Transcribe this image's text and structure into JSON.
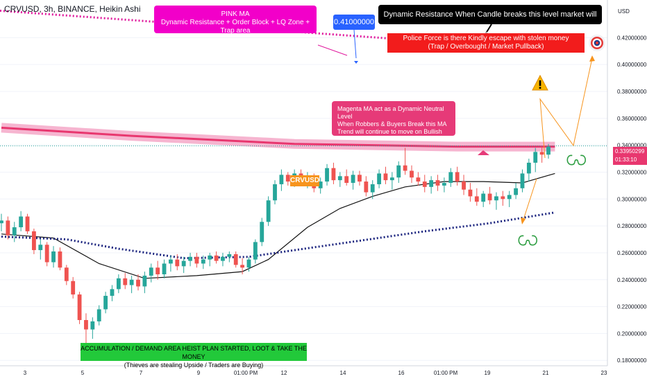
{
  "header": {
    "title": "CRVUSD, 3h, BINANCE, Heikin Ashi",
    "currency": "USD"
  },
  "chart_data": {
    "type": "candlestick",
    "x_tick_labels": [
      "3",
      "5",
      "7",
      "9",
      "01:00 PM",
      "12",
      "14",
      "16",
      "01:00 PM",
      "19",
      "21",
      "23"
    ],
    "y_tick_labels": [
      "0.42000000",
      "0.40000000",
      "0.38000000",
      "0.36000000",
      "0.34000000",
      "0.32000000",
      "0.30000000",
      "0.28000000",
      "0.26000000",
      "0.24000000",
      "0.22000000",
      "0.20000000",
      "0.18000000"
    ],
    "ylim": [
      0.176,
      0.448
    ],
    "y_ticks": [
      0.42,
      0.4,
      0.38,
      0.36,
      0.34,
      0.32,
      0.3,
      0.28,
      0.26,
      0.24,
      0.22,
      0.2,
      0.18
    ],
    "last_price": "0.33950299",
    "countdown": "01:33:10",
    "ohlc": [
      [
        0.282,
        0.289,
        0.276,
        0.284
      ],
      [
        0.284,
        0.287,
        0.27,
        0.273
      ],
      [
        0.273,
        0.283,
        0.268,
        0.279
      ],
      [
        0.279,
        0.291,
        0.276,
        0.287
      ],
      [
        0.287,
        0.289,
        0.274,
        0.276
      ],
      [
        0.276,
        0.278,
        0.259,
        0.262
      ],
      [
        0.262,
        0.27,
        0.255,
        0.266
      ],
      [
        0.266,
        0.268,
        0.25,
        0.253
      ],
      [
        0.253,
        0.265,
        0.249,
        0.261
      ],
      [
        0.261,
        0.264,
        0.247,
        0.249
      ],
      [
        0.249,
        0.251,
        0.236,
        0.239
      ],
      [
        0.239,
        0.242,
        0.226,
        0.229
      ],
      [
        0.229,
        0.231,
        0.207,
        0.21
      ],
      [
        0.21,
        0.215,
        0.19,
        0.203
      ],
      [
        0.203,
        0.212,
        0.196,
        0.209
      ],
      [
        0.209,
        0.221,
        0.206,
        0.218
      ],
      [
        0.218,
        0.231,
        0.215,
        0.228
      ],
      [
        0.228,
        0.236,
        0.224,
        0.233
      ],
      [
        0.233,
        0.244,
        0.23,
        0.241
      ],
      [
        0.241,
        0.245,
        0.233,
        0.236
      ],
      [
        0.236,
        0.243,
        0.23,
        0.24
      ],
      [
        0.24,
        0.244,
        0.232,
        0.235
      ],
      [
        0.235,
        0.246,
        0.23,
        0.243
      ],
      [
        0.243,
        0.252,
        0.238,
        0.249
      ],
      [
        0.249,
        0.254,
        0.24,
        0.244
      ],
      [
        0.244,
        0.255,
        0.241,
        0.252
      ],
      [
        0.252,
        0.258,
        0.246,
        0.255
      ],
      [
        0.255,
        0.259,
        0.247,
        0.25
      ],
      [
        0.25,
        0.257,
        0.245,
        0.254
      ],
      [
        0.254,
        0.26,
        0.25,
        0.257
      ],
      [
        0.257,
        0.26,
        0.249,
        0.252
      ],
      [
        0.252,
        0.258,
        0.248,
        0.255
      ],
      [
        0.255,
        0.26,
        0.25,
        0.258
      ],
      [
        0.258,
        0.261,
        0.252,
        0.254
      ],
      [
        0.254,
        0.26,
        0.25,
        0.257
      ],
      [
        0.257,
        0.261,
        0.253,
        0.259
      ],
      [
        0.259,
        0.261,
        0.249,
        0.251
      ],
      [
        0.251,
        0.256,
        0.244,
        0.249
      ],
      [
        0.249,
        0.257,
        0.246,
        0.255
      ],
      [
        0.255,
        0.27,
        0.252,
        0.268
      ],
      [
        0.268,
        0.286,
        0.265,
        0.283
      ],
      [
        0.283,
        0.302,
        0.28,
        0.299
      ],
      [
        0.299,
        0.314,
        0.296,
        0.311
      ],
      [
        0.311,
        0.322,
        0.306,
        0.318
      ],
      [
        0.318,
        0.32,
        0.31,
        0.313
      ],
      [
        0.313,
        0.322,
        0.309,
        0.319
      ],
      [
        0.319,
        0.322,
        0.311,
        0.314
      ],
      [
        0.314,
        0.32,
        0.308,
        0.316
      ],
      [
        0.316,
        0.319,
        0.305,
        0.308
      ],
      [
        0.308,
        0.316,
        0.304,
        0.313
      ],
      [
        0.313,
        0.326,
        0.31,
        0.323
      ],
      [
        0.323,
        0.327,
        0.311,
        0.314
      ],
      [
        0.314,
        0.32,
        0.309,
        0.317
      ],
      [
        0.317,
        0.322,
        0.31,
        0.312
      ],
      [
        0.312,
        0.321,
        0.307,
        0.318
      ],
      [
        0.318,
        0.321,
        0.31,
        0.313
      ],
      [
        0.313,
        0.317,
        0.302,
        0.305
      ],
      [
        0.305,
        0.314,
        0.3,
        0.311
      ],
      [
        0.311,
        0.322,
        0.308,
        0.319
      ],
      [
        0.319,
        0.324,
        0.311,
        0.314
      ],
      [
        0.314,
        0.32,
        0.307,
        0.316
      ],
      [
        0.316,
        0.328,
        0.312,
        0.325
      ],
      [
        0.325,
        0.338,
        0.318,
        0.321
      ],
      [
        0.321,
        0.325,
        0.312,
        0.316
      ],
      [
        0.316,
        0.32,
        0.31,
        0.313
      ],
      [
        0.313,
        0.318,
        0.305,
        0.309
      ],
      [
        0.309,
        0.317,
        0.304,
        0.314
      ],
      [
        0.314,
        0.318,
        0.306,
        0.31
      ],
      [
        0.31,
        0.316,
        0.305,
        0.312
      ],
      [
        0.312,
        0.323,
        0.309,
        0.32
      ],
      [
        0.32,
        0.324,
        0.31,
        0.313
      ],
      [
        0.313,
        0.318,
        0.303,
        0.307
      ],
      [
        0.307,
        0.312,
        0.298,
        0.302
      ],
      [
        0.302,
        0.308,
        0.295,
        0.298
      ],
      [
        0.298,
        0.306,
        0.294,
        0.304
      ],
      [
        0.304,
        0.309,
        0.296,
        0.299
      ],
      [
        0.299,
        0.305,
        0.292,
        0.302
      ],
      [
        0.302,
        0.306,
        0.295,
        0.3
      ],
      [
        0.3,
        0.306,
        0.294,
        0.303
      ],
      [
        0.303,
        0.312,
        0.3,
        0.308
      ],
      [
        0.308,
        0.322,
        0.305,
        0.319
      ],
      [
        0.319,
        0.33,
        0.313,
        0.327
      ],
      [
        0.327,
        0.338,
        0.32,
        0.335
      ],
      [
        0.335,
        0.339,
        0.327,
        0.333
      ],
      [
        0.333,
        0.341,
        0.33,
        0.339
      ]
    ],
    "overlays": [
      {
        "name": "pink-ma",
        "style": "pink-dashed",
        "from": 0.44,
        "to": 0.411
      },
      {
        "name": "magenta-ma",
        "style": "magenta-thick",
        "points": [
          [
            0,
            0.353
          ],
          [
            20,
            0.347
          ],
          [
            45,
            0.341
          ],
          [
            70,
            0.339
          ],
          [
            85,
            0.339
          ]
        ]
      },
      {
        "name": "black-ma",
        "style": "black-step",
        "points": [
          [
            0,
            0.274
          ],
          [
            8,
            0.271
          ],
          [
            15,
            0.252
          ],
          [
            22,
            0.241
          ],
          [
            30,
            0.243
          ],
          [
            37,
            0.246
          ],
          [
            41,
            0.255
          ],
          [
            47,
            0.279
          ],
          [
            52,
            0.293
          ],
          [
            57,
            0.302
          ],
          [
            62,
            0.309
          ],
          [
            68,
            0.313
          ],
          [
            74,
            0.313
          ],
          [
            80,
            0.312
          ],
          [
            85,
            0.319
          ]
        ]
      },
      {
        "name": "blue-dotted-ma",
        "style": "navy-dotted",
        "points": [
          [
            0,
            0.272
          ],
          [
            10,
            0.27
          ],
          [
            18,
            0.263
          ],
          [
            28,
            0.256
          ],
          [
            38,
            0.257
          ],
          [
            45,
            0.262
          ],
          [
            55,
            0.269
          ],
          [
            65,
            0.276
          ],
          [
            75,
            0.282
          ],
          [
            85,
            0.29
          ]
        ]
      }
    ]
  },
  "annotations": {
    "pink_ma": {
      "line1": "PINK MA",
      "line2": "Dynamic Resistance + Order Block + LQ Zone + Trap area"
    },
    "price_flag": "0.41000000",
    "dynamic_resistance": "Dynamic Resistance When Candle breaks this level market will Continue to go UP",
    "police": {
      "line1": "Police Force is there Kindly escape with stolen money",
      "line2": "(Trap / Overbought / Market Pullback)"
    },
    "magenta_ma": {
      "line1": "Magenta MA act as a Dynamic Neutral Level",
      "line2": "When Robbers & Buyers Break this MA",
      "line3": "Trend will continue to move on Bullish"
    },
    "accumulation": {
      "line1": "ACCUMULATION / DEMAND AREA HEIST PLAN STARTED, LOOT & TAKE THE MONEY",
      "line2": "(Thieves are stealing Upside / Traders are Buying)"
    },
    "ticker_tag": "CRVUSD"
  },
  "icons": [
    "warning-icon",
    "target-icon",
    "snake-icon"
  ],
  "colors": {
    "bull": "#26a69a",
    "bear": "#ef5350",
    "pink": "#e0189d",
    "magenta": "#e8376f",
    "accent_orange": "#f7941d"
  }
}
